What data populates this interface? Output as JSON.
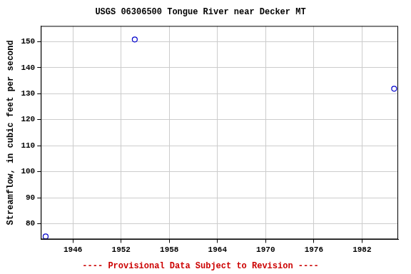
{
  "chart_data": {
    "type": "scatter",
    "title": "USGS 06306500 Tongue River near Decker MT",
    "subtitle": "---- Provisional Data Subject to Revision ----",
    "y_label": "Streamflow, in cubic feet per second",
    "x": [
      1942.6,
      1953.7,
      1986.0
    ],
    "values": [
      75.1,
      150.8,
      131.9
    ],
    "color": "#0000cc",
    "marker": "circle",
    "xlim": [
      1942,
      1986.5
    ],
    "xticks": [
      1946,
      1952,
      1958,
      1964,
      1970,
      1976,
      1982
    ],
    "ylim": [
      74,
      156
    ],
    "yticks": [
      80,
      90,
      100,
      110,
      120,
      130,
      140,
      150
    ],
    "grid": true
  }
}
